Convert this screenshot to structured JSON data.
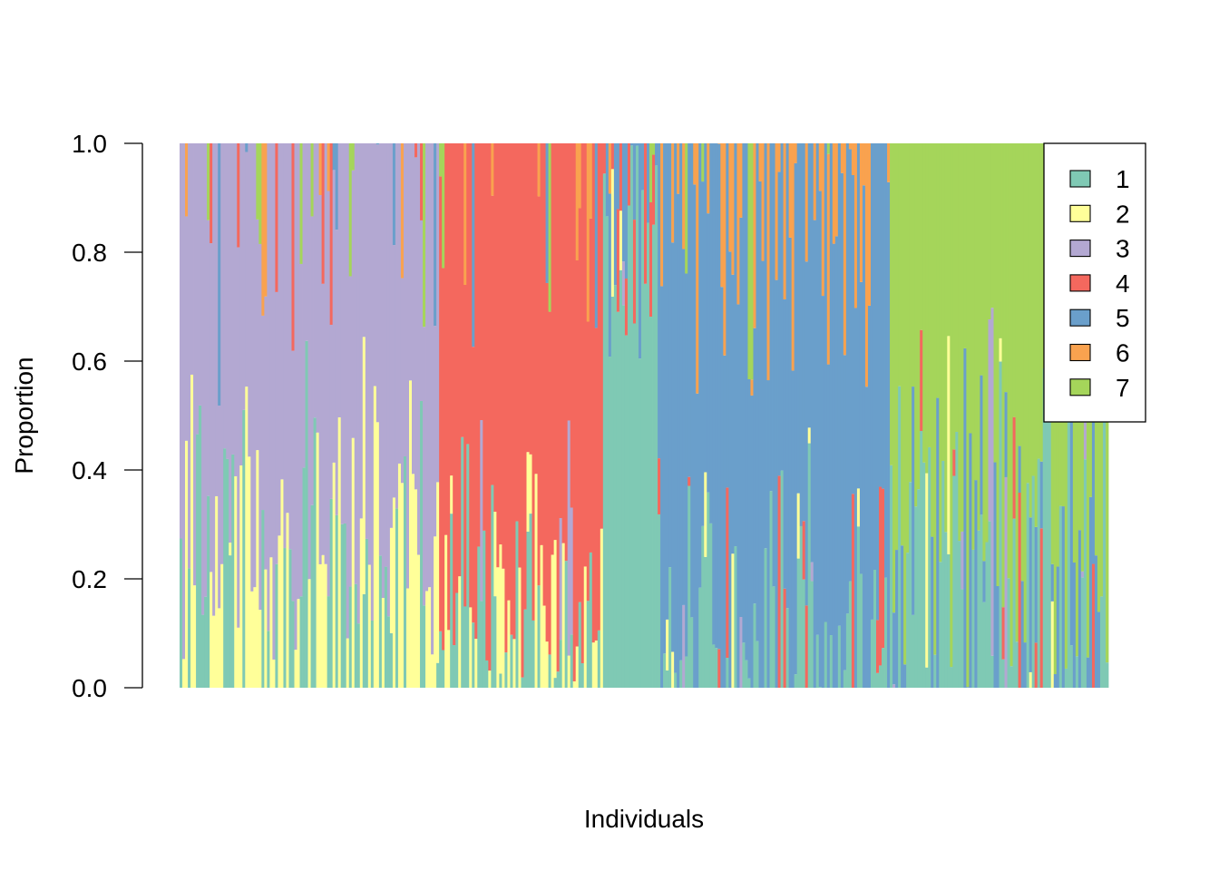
{
  "chart_data": {
    "type": "bar",
    "stacked": true,
    "n_individuals": 340,
    "xlabel": "Individuals",
    "ylabel": "Proportion",
    "ylim": [
      0,
      1
    ],
    "yticks": [
      "0.0",
      "0.2",
      "0.4",
      "0.6",
      "0.8",
      "1.0"
    ],
    "ytick_values": [
      0,
      0.2,
      0.4,
      0.6,
      0.8,
      1.0
    ],
    "grid": false,
    "legend": {
      "placement": "top-right",
      "labels": [
        "1",
        "2",
        "3",
        "4",
        "5",
        "6",
        "7"
      ]
    },
    "colors": [
      "#7fc9b4",
      "#ffff99",
      "#b3a8d2",
      "#f4685e",
      "#6a9fcb",
      "#f9a24f",
      "#a5d55a"
    ],
    "groups": [
      {
        "count": 95,
        "main": 2,
        "mainRange": [
          0.3,
          0.95
        ],
        "secondary": [
          0,
          1
        ],
        "secondaryRange": [
          0.1,
          0.6
        ]
      },
      {
        "count": 60,
        "main": 3,
        "mainRange": [
          0.5,
          1.0
        ],
        "secondary": [
          0,
          1
        ],
        "secondaryRange": [
          0.05,
          0.4
        ]
      },
      {
        "count": 20,
        "main": 0,
        "mainRange": [
          0.6,
          1.0
        ],
        "secondary": [
          3,
          4
        ],
        "secondaryRange": [
          0.0,
          0.3
        ]
      },
      {
        "count": 85,
        "main": 4,
        "mainRange": [
          0.5,
          0.98
        ],
        "secondary": [
          5,
          0
        ],
        "secondaryRange": [
          0.0,
          0.5
        ]
      },
      {
        "count": 80,
        "main": 6,
        "mainRange": [
          0.3,
          1.0
        ],
        "secondary": [
          4,
          0
        ],
        "secondaryRange": [
          0.0,
          0.7
        ]
      }
    ]
  }
}
